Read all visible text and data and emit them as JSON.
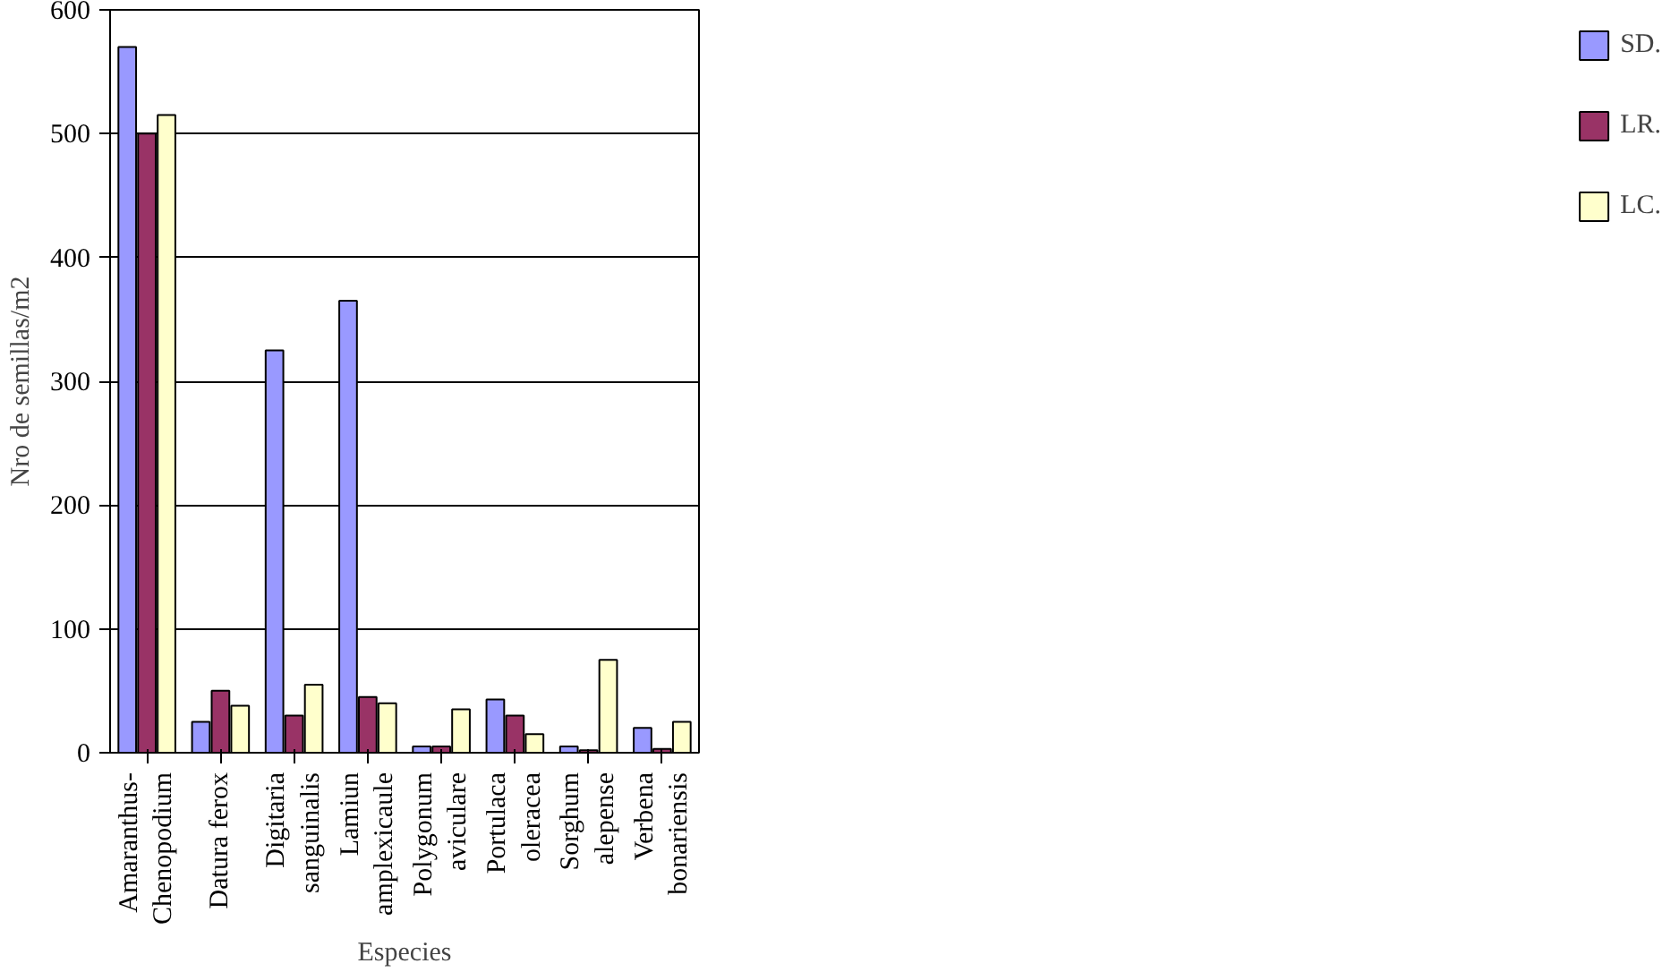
{
  "chart_data": {
    "type": "bar",
    "xlabel": "Especies",
    "ylabel": "Nro de semillas/m2",
    "categories": [
      "Amaranthus-\nChenopodium",
      "Datura ferox",
      "Digitaria\nsanguinalis",
      "Lamiun\namplexicaule",
      "Polygonum\naviculare",
      "Portulaca\noleracea",
      "Sorghum\nalepense",
      "Verbena\nbonariensis"
    ],
    "series": [
      {
        "name": "SD.",
        "color": "#9999ff",
        "values": [
          570,
          25,
          325,
          365,
          5,
          43,
          5,
          20
        ]
      },
      {
        "name": "LR.",
        "color": "#993366",
        "values": [
          500,
          50,
          30,
          45,
          5,
          30,
          2,
          3
        ]
      },
      {
        "name": "LC.",
        "color": "#ffffcc",
        "values": [
          515,
          38,
          55,
          40,
          35,
          15,
          75,
          25
        ]
      }
    ],
    "ylim": [
      0,
      600
    ],
    "yticks": [
      0,
      100,
      200,
      300,
      400,
      500,
      600
    ],
    "grid": "y",
    "legend": "right"
  }
}
